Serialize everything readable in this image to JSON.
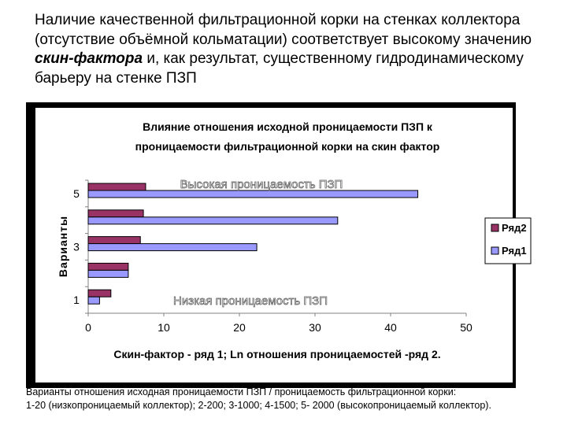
{
  "heading": {
    "before": "Наличие качественной фильтрационной корки на стенках коллектора (отсутствие объёмной кольматации) соответствует высокому значению ",
    "emphasis": "скин-фактора",
    "after": "  и, как результат, существенному гидродинамическому барьеру на стенке ПЗП"
  },
  "caption": {
    "line1": "Варианты отношения исходная проницаемости ПЗП / проницаемость фильтрационной корки:",
    "line2": "1-20 (низкопроницаемый коллектор); 2-200; 3-1000; 4-1500; 5- 2000 (высокопроницаемый коллектор)."
  },
  "chart_data": {
    "type": "bar",
    "orientation": "horizontal",
    "title_line1": "Влияние отношения исходной проницаемости ПЗП к",
    "title_line2": "проницаемости фильтрационной корки на скин фактор",
    "xlabel": "Скин-фактор - ряд 1; Ln отношения проницаемостей -ряд 2.",
    "ylabel": "Варианты",
    "categories": [
      "1",
      "2",
      "3",
      "4",
      "5"
    ],
    "category_labels_shown": [
      "1",
      "",
      "3",
      "",
      "5"
    ],
    "xlim": [
      0,
      50
    ],
    "xticks": [
      0,
      10,
      20,
      30,
      40,
      50
    ],
    "series": [
      {
        "name": "Ряд1",
        "values": [
          1.5,
          5.3,
          22.3,
          33.0,
          43.6
        ],
        "color": "#9999ff"
      },
      {
        "name": "Ряд2",
        "values": [
          3.0,
          5.3,
          6.9,
          7.3,
          7.6
        ],
        "color": "#993366"
      }
    ],
    "legend_position": "right",
    "annotations": {
      "top": "Высокая проницаемость ПЗП",
      "bottom": "Низкая проницаемость ПЗП"
    }
  }
}
